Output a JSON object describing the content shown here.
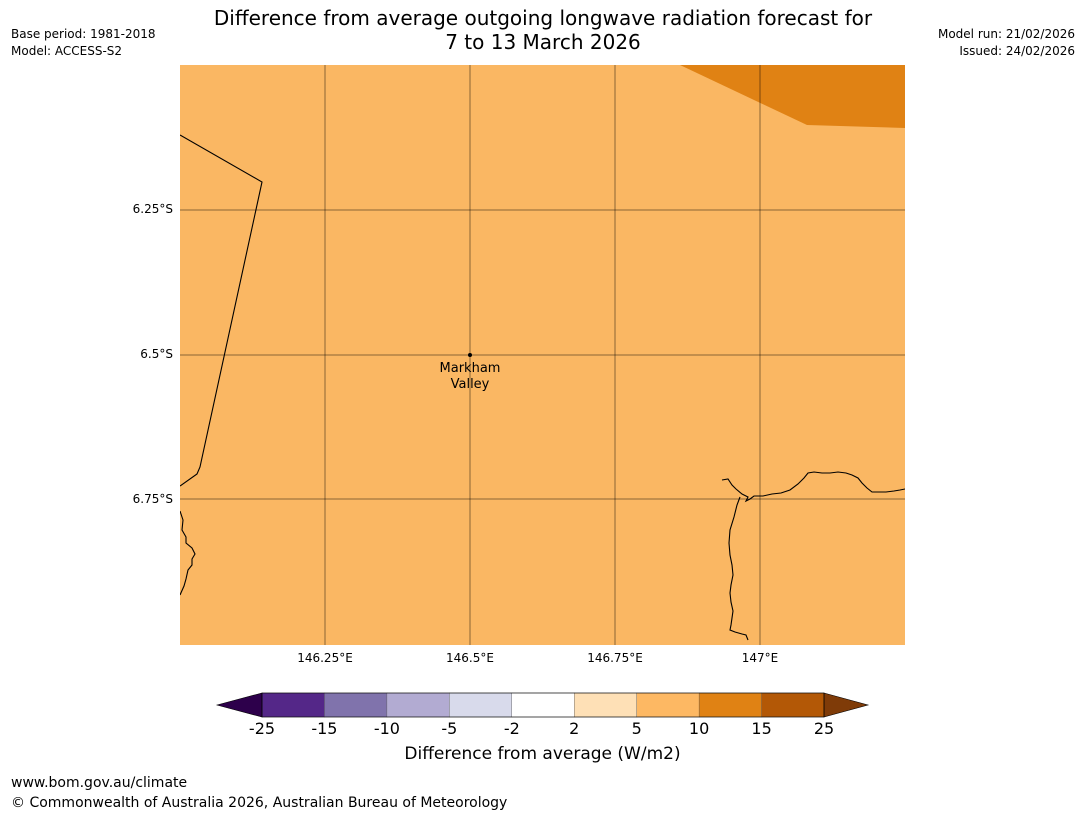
{
  "title": {
    "line1": "Difference from average outgoing longwave radiation forecast for",
    "line2": "7 to 13 March 2026"
  },
  "meta_left": {
    "base_period": "Base period: 1981-2018",
    "model": "Model: ACCESS-S2"
  },
  "meta_right": {
    "model_run": "Model run: 21/02/2026",
    "issued": "Issued: 24/02/2026"
  },
  "map": {
    "place_label": [
      "Markham",
      "Valley"
    ],
    "lat_labels": [
      "6.25°S",
      "6.5°S",
      "6.75°S"
    ],
    "lon_labels": [
      "146.25°E",
      "146.5°E",
      "146.75°E",
      "147°E"
    ],
    "base_fill_color": "#FAB763",
    "high_fill_color": "#E08214"
  },
  "colorbar": {
    "ticks": [
      "-25",
      "-15",
      "-10",
      "-5",
      "-2",
      "2",
      "5",
      "10",
      "15",
      "25"
    ],
    "colors": [
      "#542788",
      "#8073AC",
      "#B2ABD2",
      "#D8DAEB",
      "#FFFFFF",
      "#FEE0B6",
      "#FDB863",
      "#E08214",
      "#B35806"
    ],
    "under_color": "#2D004B",
    "over_color": "#7F3B08",
    "label": "Difference from average (W/m2)"
  },
  "footer": {
    "url": "www.bom.gov.au/climate",
    "copyright": "© Commonwealth of Australia 2026, Australian Bureau of Meteorology"
  }
}
